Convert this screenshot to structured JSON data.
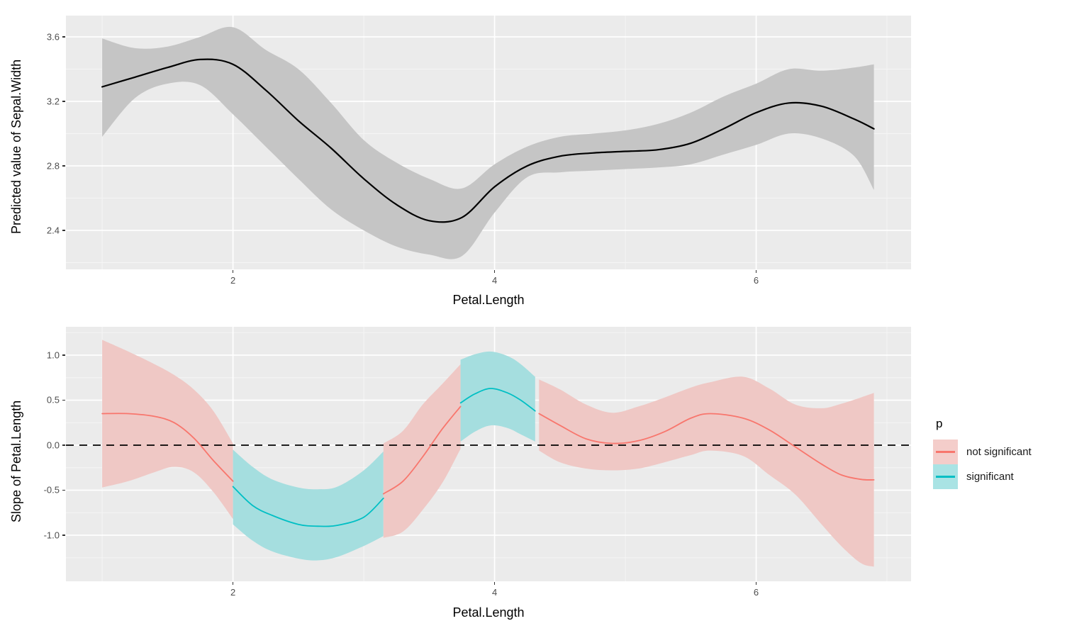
{
  "page": {
    "background": "#ffffff",
    "panel_background": "#ebebeb",
    "grid_major_color": "#ffffff",
    "grid_minor_color": "#f5f5f5",
    "tick_label_color": "#4d4d4d",
    "axis_title_color": "#000000"
  },
  "legend": {
    "title": "p",
    "items": [
      {
        "label": "not significant",
        "line_color": "#F8766D",
        "fill_color": "#F4CDCA"
      },
      {
        "label": "significant",
        "line_color": "#00BFC4",
        "fill_color": "#A9E3E4"
      }
    ]
  },
  "chart_data": [
    {
      "type": "line",
      "id": "prediction-panel",
      "title": "",
      "xlabel": "Petal.Length",
      "ylabel": "Predicted value of Sepal.Width",
      "xlim": [
        0.723,
        7.184
      ],
      "ylim": [
        2.158,
        3.732
      ],
      "grid": "on",
      "legend_position": "none",
      "x_ticks_major": [
        2,
        4,
        6
      ],
      "x_tick_labels": [
        "2",
        "4",
        "6"
      ],
      "x_ticks_minor": [
        1,
        3,
        5,
        7
      ],
      "y_ticks_major": [
        2.4,
        2.8,
        3.2,
        3.6
      ],
      "y_tick_labels": [
        "2.4",
        "2.8",
        "3.2",
        "3.6"
      ],
      "y_ticks_minor": [
        2.2,
        2.6,
        3.0,
        3.4
      ],
      "series": [
        {
          "name": "gam-smooth",
          "line_color": "#000000",
          "line_width": 2.2,
          "ribbon_fill": "#c5c5c5",
          "x": [
            1.0,
            1.25,
            1.5,
            1.75,
            2.0,
            2.25,
            2.5,
            2.75,
            3.0,
            3.25,
            3.5,
            3.75,
            4.0,
            4.25,
            4.5,
            4.75,
            5.0,
            5.25,
            5.5,
            5.75,
            6.0,
            6.25,
            6.5,
            6.75,
            6.9
          ],
          "y": [
            3.29,
            3.35,
            3.41,
            3.46,
            3.43,
            3.27,
            3.08,
            2.91,
            2.72,
            2.56,
            2.46,
            2.48,
            2.67,
            2.8,
            2.86,
            2.88,
            2.89,
            2.9,
            2.94,
            3.03,
            3.13,
            3.19,
            3.17,
            3.09,
            3.03
          ],
          "ymax": [
            3.59,
            3.53,
            3.54,
            3.6,
            3.66,
            3.52,
            3.4,
            3.19,
            2.96,
            2.82,
            2.72,
            2.66,
            2.81,
            2.92,
            2.98,
            3.0,
            3.02,
            3.06,
            3.13,
            3.23,
            3.31,
            3.4,
            3.39,
            3.41,
            3.43
          ],
          "ymin": [
            2.98,
            3.22,
            3.31,
            3.3,
            3.12,
            2.92,
            2.72,
            2.53,
            2.4,
            2.3,
            2.25,
            2.24,
            2.51,
            2.73,
            2.76,
            2.77,
            2.78,
            2.79,
            2.81,
            2.87,
            2.93,
            3.0,
            2.97,
            2.86,
            2.65
          ]
        }
      ]
    },
    {
      "type": "line",
      "id": "slope-panel",
      "title": "",
      "xlabel": "Petal.Length",
      "ylabel": "Slope of Petal.Length",
      "xlim": [
        0.723,
        7.184
      ],
      "ylim": [
        -1.512,
        1.315
      ],
      "grid": "on",
      "legend_position": "right",
      "x_ticks_major": [
        2,
        4,
        6
      ],
      "x_tick_labels": [
        "2",
        "4",
        "6"
      ],
      "x_ticks_minor": [
        1,
        3,
        5,
        7
      ],
      "y_ticks_major": [
        1.0,
        0.5,
        0.0,
        -0.5,
        -1.0
      ],
      "y_tick_labels": [
        "1.0",
        "0.5",
        "0.0",
        "-0.5",
        "-1.0"
      ],
      "y_ticks_minor": [
        1.25,
        0.75,
        0.25,
        -0.25,
        -0.75,
        -1.25
      ],
      "hline": {
        "y": 0,
        "style": "dashed",
        "color": "#000000",
        "width": 1.8,
        "dash": "11 8"
      },
      "segments": [
        {
          "p": "not significant",
          "line_color": "#F8766D",
          "ribbon_fill": "#efc8c5",
          "line_width": 1.8,
          "x": [
            1.0,
            1.2,
            1.4,
            1.55,
            1.7,
            1.85,
            2.0
          ],
          "y": [
            0.35,
            0.35,
            0.32,
            0.25,
            0.08,
            -0.17,
            -0.4
          ],
          "ymax": [
            1.17,
            1.04,
            0.9,
            0.78,
            0.62,
            0.38,
            0.02
          ],
          "ymin": [
            -0.47,
            -0.4,
            -0.3,
            -0.24,
            -0.3,
            -0.52,
            -0.82
          ]
        },
        {
          "p": "significant",
          "line_color": "#00BFC4",
          "ribbon_fill": "#a5dedf",
          "line_width": 1.8,
          "x": [
            2.0,
            2.15,
            2.3,
            2.5,
            2.65,
            2.8,
            3.0,
            3.15
          ],
          "y": [
            -0.46,
            -0.67,
            -0.78,
            -0.88,
            -0.9,
            -0.89,
            -0.8,
            -0.59
          ],
          "ymax": [
            -0.05,
            -0.24,
            -0.38,
            -0.47,
            -0.49,
            -0.46,
            -0.28,
            -0.07
          ],
          "ymin": [
            -0.88,
            -1.06,
            -1.18,
            -1.26,
            -1.28,
            -1.24,
            -1.12,
            -1.01
          ]
        },
        {
          "p": "not significant",
          "line_color": "#F8766D",
          "ribbon_fill": "#efc8c5",
          "line_width": 1.8,
          "x": [
            3.15,
            3.3,
            3.45,
            3.6,
            3.74
          ],
          "y": [
            -0.54,
            -0.4,
            -0.13,
            0.18,
            0.43
          ],
          "ymax": [
            0.02,
            0.16,
            0.45,
            0.68,
            0.9
          ],
          "ymin": [
            -1.03,
            -0.96,
            -0.72,
            -0.42,
            -0.04
          ]
        },
        {
          "p": "significant",
          "line_color": "#00BFC4",
          "ribbon_fill": "#a5dedf",
          "line_width": 1.8,
          "x": [
            3.74,
            3.85,
            3.97,
            4.1,
            4.2,
            4.31
          ],
          "y": [
            0.47,
            0.57,
            0.63,
            0.58,
            0.5,
            0.38
          ],
          "ymax": [
            0.95,
            1.01,
            1.04,
            0.99,
            0.9,
            0.76
          ],
          "ymin": [
            0.04,
            0.15,
            0.22,
            0.19,
            0.12,
            0.04
          ]
        },
        {
          "p": "not significant",
          "line_color": "#F8766D",
          "ribbon_fill": "#efc8c5",
          "line_width": 1.8,
          "x": [
            4.34,
            4.5,
            4.7,
            4.9,
            5.1,
            5.3,
            5.5,
            5.65,
            5.9,
            6.1,
            6.3,
            6.5,
            6.65,
            6.8,
            6.9
          ],
          "y": [
            0.35,
            0.22,
            0.07,
            0.02,
            0.05,
            0.15,
            0.3,
            0.35,
            0.3,
            0.17,
            -0.02,
            -0.21,
            -0.33,
            -0.38,
            -0.385
          ],
          "ymax": [
            0.73,
            0.62,
            0.45,
            0.36,
            0.43,
            0.53,
            0.64,
            0.7,
            0.76,
            0.63,
            0.45,
            0.41,
            0.46,
            0.53,
            0.58
          ],
          "ymin": [
            -0.06,
            -0.19,
            -0.26,
            -0.28,
            -0.26,
            -0.19,
            -0.11,
            -0.06,
            -0.12,
            -0.33,
            -0.55,
            -0.88,
            -1.12,
            -1.31,
            -1.35
          ]
        }
      ]
    }
  ]
}
